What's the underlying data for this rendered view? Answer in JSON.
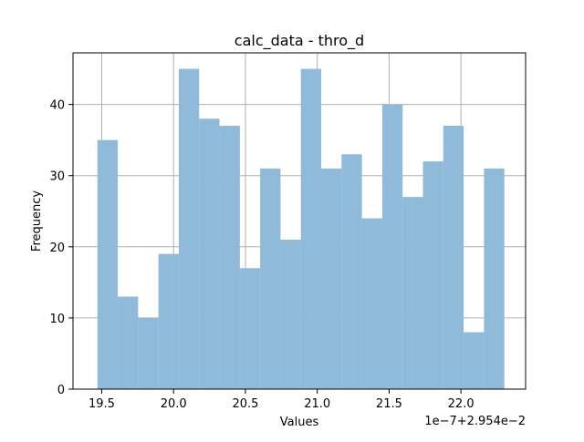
{
  "chart_data": {
    "type": "bar",
    "title": "calc_data - thro_d",
    "xlabel": "Values",
    "ylabel": "Frequency",
    "x_offset_label": "1e−7+2.954e−2",
    "xlim": [
      19.3,
      22.45
    ],
    "ylim": [
      0,
      47.25
    ],
    "xticks": [
      19.5,
      20.0,
      20.5,
      21.0,
      21.5,
      22.0
    ],
    "xtick_labels": [
      "19.5",
      "20.0",
      "20.5",
      "21.0",
      "21.5",
      "22.0"
    ],
    "yticks": [
      0,
      10,
      20,
      30,
      40
    ],
    "ytick_labels": [
      "0",
      "10",
      "20",
      "30",
      "40"
    ],
    "grid": true,
    "bin_start": 19.47,
    "bin_width": 0.1416,
    "values": [
      35,
      13,
      10,
      19,
      45,
      38,
      37,
      17,
      31,
      21,
      45,
      31,
      33,
      24,
      40,
      27,
      32,
      37,
      8,
      31
    ],
    "bar_color": "#8fbad9",
    "grid_color": "#b0b0b0",
    "axis_color": "#000000"
  }
}
